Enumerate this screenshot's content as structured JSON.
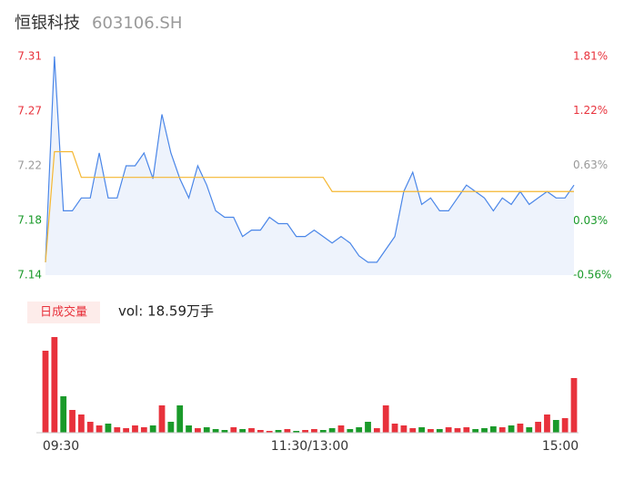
{
  "title": "恒银科技",
  "code": "603106.SH",
  "chart_data": [
    {
      "type": "line",
      "x": [
        0,
        1,
        2,
        3,
        4,
        5,
        6,
        7,
        8,
        9,
        10,
        11,
        12,
        13,
        14,
        15,
        16,
        17,
        18,
        19,
        20,
        21,
        22,
        23,
        24,
        25,
        26,
        27,
        28,
        29,
        30,
        31,
        32,
        33,
        34,
        35,
        36,
        37,
        38,
        39,
        40,
        41,
        42,
        43,
        44,
        45,
        46,
        47,
        48,
        49,
        50,
        51,
        52,
        53,
        54,
        55,
        56,
        57,
        58,
        59
      ],
      "xlim": [
        0,
        59
      ],
      "series": [
        {
          "name": "price",
          "color": "#4a86e8",
          "values": [
            7.15,
            7.31,
            7.19,
            7.19,
            7.2,
            7.2,
            7.235,
            7.2,
            7.2,
            7.225,
            7.225,
            7.235,
            7.215,
            7.265,
            7.235,
            7.215,
            7.2,
            7.225,
            7.21,
            7.19,
            7.185,
            7.185,
            7.17,
            7.175,
            7.175,
            7.185,
            7.18,
            7.18,
            7.17,
            7.17,
            7.175,
            7.17,
            7.165,
            7.17,
            7.165,
            7.155,
            7.15,
            7.15,
            7.16,
            7.17,
            7.205,
            7.22,
            7.195,
            7.2,
            7.19,
            7.19,
            7.2,
            7.21,
            7.205,
            7.2,
            7.19,
            7.2,
            7.195,
            7.205,
            7.195,
            7.2,
            7.205,
            7.2,
            7.2,
            7.21
          ]
        },
        {
          "name": "average",
          "color": "#f5b731",
          "values": [
            7.15,
            7.236,
            7.236,
            7.236,
            7.216,
            7.216,
            7.216,
            7.216,
            7.216,
            7.216,
            7.216,
            7.216,
            7.216,
            7.216,
            7.216,
            7.216,
            7.216,
            7.216,
            7.216,
            7.216,
            7.216,
            7.216,
            7.216,
            7.216,
            7.216,
            7.216,
            7.216,
            7.216,
            7.216,
            7.216,
            7.216,
            7.216,
            7.205,
            7.205,
            7.205,
            7.205,
            7.205,
            7.205,
            7.205,
            7.205,
            7.205,
            7.205,
            7.205,
            7.205,
            7.205,
            7.205,
            7.205,
            7.205,
            7.205,
            7.205,
            7.205,
            7.205,
            7.205,
            7.205,
            7.205,
            7.205,
            7.205,
            7.205,
            7.205,
            7.205
          ]
        }
      ],
      "ylim": [
        7.14,
        7.31
      ],
      "yticks": [
        {
          "value": 7.31,
          "label": "7.31"
        },
        {
          "value": 7.2675,
          "label": "7.27"
        },
        {
          "value": 7.225,
          "label": "7.22"
        },
        {
          "value": 7.1825,
          "label": "7.18"
        },
        {
          "value": 7.14,
          "label": "7.14"
        }
      ],
      "y2lim": [
        -0.56,
        1.81
      ],
      "y2ticks": [
        {
          "value": 1.81,
          "label": "1.81%"
        },
        {
          "value": 1.22,
          "label": "1.22%"
        },
        {
          "value": 0.63,
          "label": "0.63%"
        },
        {
          "value": 0.03,
          "label": "0.03%"
        },
        {
          "value": -0.56,
          "label": "-0.56%"
        }
      ],
      "tick_colors": [
        "#e8323c",
        "#e8323c",
        "#999999",
        "#1a9a2a",
        "#1a9a2a"
      ]
    },
    {
      "type": "bar",
      "legend_label": "日成交量",
      "summary": "vol: 18.59万手",
      "up_color": "#e8323c",
      "down_color": "#1a9a2a",
      "values": [
        90,
        105,
        40,
        25,
        20,
        12,
        8,
        10,
        6,
        5,
        8,
        6,
        8,
        30,
        12,
        30,
        8,
        5,
        6,
        4,
        3,
        6,
        4,
        5,
        3,
        2,
        3,
        4,
        2,
        3,
        4,
        3,
        5,
        8,
        4,
        6,
        12,
        5,
        30,
        10,
        8,
        5,
        6,
        4,
        4,
        6,
        5,
        6,
        4,
        5,
        7,
        6,
        8,
        10,
        6,
        12,
        20,
        14,
        16,
        60
      ],
      "ylim": [
        0,
        110
      ],
      "xlim": [
        0,
        59
      ],
      "xticks": [
        {
          "value": 0,
          "label": "09:30"
        },
        {
          "value": 29.5,
          "label": "11:30/13:00"
        },
        {
          "value": 59,
          "label": "15:00"
        }
      ]
    }
  ]
}
